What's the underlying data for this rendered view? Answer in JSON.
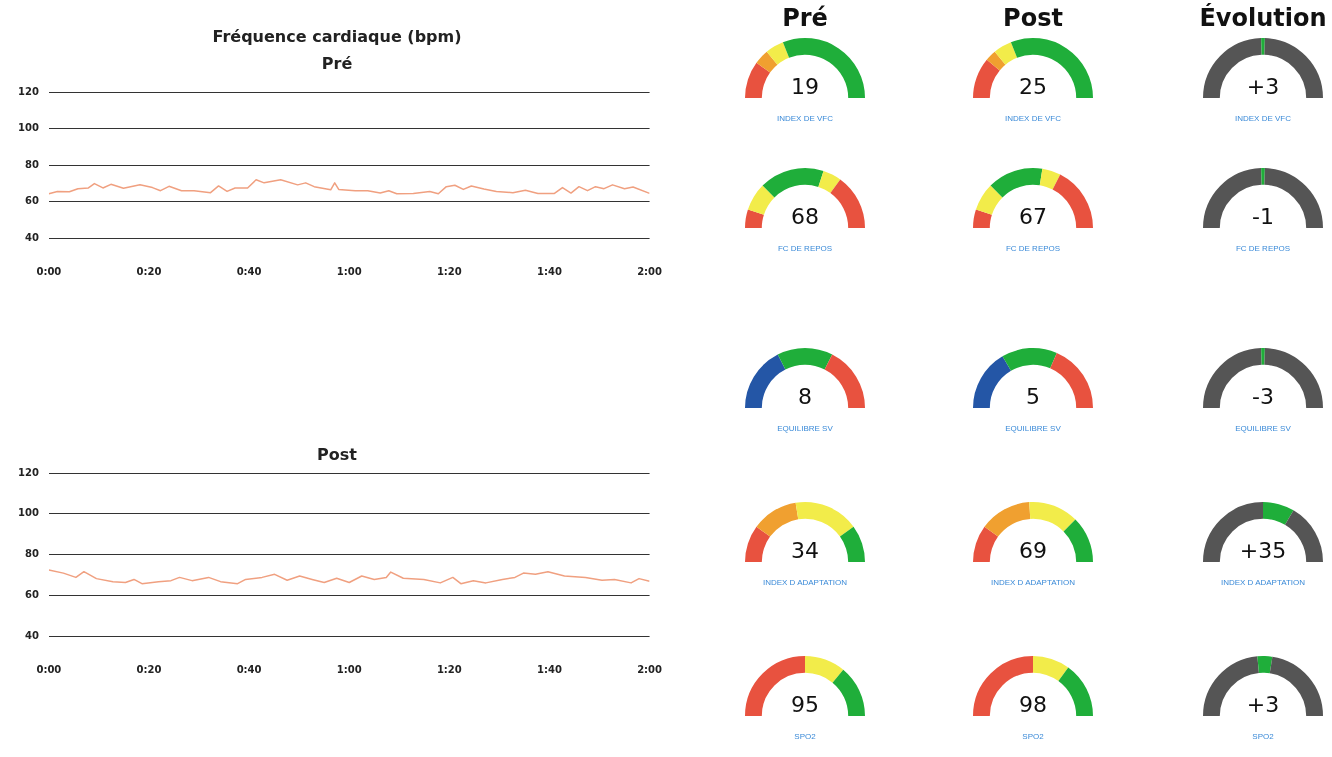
{
  "chart_data": [
    {
      "type": "line",
      "title": "Fréquence cardiaque (bpm)",
      "subtitle": "Pré",
      "grid": "y",
      "legend": false,
      "marker": "none",
      "xlim": [
        0,
        120
      ],
      "ylim": [
        40,
        120
      ],
      "yticks": [
        40,
        60,
        80,
        100,
        120
      ],
      "xticks": [
        {
          "value": 0,
          "label": "0:00"
        },
        {
          "value": 20,
          "label": "0:20"
        },
        {
          "value": 40,
          "label": "0:40"
        },
        {
          "value": 60,
          "label": "1:00"
        },
        {
          "value": 80,
          "label": "1:20"
        },
        {
          "value": 100,
          "label": "1:40"
        },
        {
          "value": 120,
          "label": "2:00"
        }
      ],
      "series": [
        {
          "color": "#f0a080",
          "x": [
            0,
            1.7,
            4.1,
            5.8,
            7.9,
            9.1,
            10.8,
            12.4,
            14.9,
            18.2,
            20.7,
            22.3,
            24.0,
            26.5,
            29.0,
            32.3,
            33.9,
            35.6,
            37.2,
            39.7,
            41.4,
            43.0,
            46.3,
            49.7,
            51.3,
            53.0,
            56.3,
            57.1,
            57.9,
            61.2,
            63.7,
            66.2,
            67.9,
            69.5,
            72.8,
            76.1,
            77.8,
            79.4,
            81.1,
            82.8,
            84.4,
            86.9,
            89.4,
            92.7,
            95.2,
            97.7,
            101.0,
            102.6,
            104.3,
            105.9,
            107.6,
            109.2,
            110.9,
            112.6,
            115.0,
            116.7,
            120
          ],
          "values": [
            64.3,
            65.6,
            65.4,
            67.1,
            67.5,
            69.9,
            67.5,
            69.5,
            67.3,
            69.2,
            67.7,
            66.0,
            68.4,
            66.0,
            66.0,
            64.9,
            68.6,
            65.6,
            67.5,
            67.5,
            72.0,
            70.3,
            72.0,
            69.2,
            70.3,
            68.2,
            66.5,
            70.3,
            66.7,
            66.0,
            66.0,
            64.7,
            66.0,
            64.3,
            64.5,
            65.6,
            64.3,
            68.2,
            69.0,
            66.7,
            68.6,
            66.9,
            65.6,
            64.9,
            66.2,
            64.5,
            64.5,
            67.7,
            64.7,
            68.2,
            66.0,
            68.2,
            67.1,
            69.2,
            67.1,
            68.0,
            64.5
          ]
        }
      ]
    },
    {
      "type": "line",
      "title": "Post",
      "grid": "y",
      "legend": false,
      "marker": "none",
      "xlim": [
        0,
        120
      ],
      "ylim": [
        40,
        120
      ],
      "yticks": [
        40,
        60,
        80,
        100,
        120
      ],
      "xticks": [
        {
          "value": 0,
          "label": "0:00"
        },
        {
          "value": 20,
          "label": "0:20"
        },
        {
          "value": 40,
          "label": "0:40"
        },
        {
          "value": 60,
          "label": "1:00"
        },
        {
          "value": 80,
          "label": "1:20"
        },
        {
          "value": 100,
          "label": "1:40"
        },
        {
          "value": 120,
          "label": "2:00"
        }
      ],
      "series": [
        {
          "color": "#f0a080",
          "x": [
            0,
            2.9,
            5.4,
            7.0,
            9.5,
            12.8,
            15.3,
            17.0,
            18.6,
            21.9,
            24.4,
            26.1,
            28.6,
            31.9,
            34.3,
            37.7,
            39.3,
            42.6,
            45.1,
            47.6,
            50.1,
            52.6,
            55.0,
            57.5,
            60.0,
            62.5,
            65.0,
            67.4,
            68.3,
            70.8,
            74.9,
            78.2,
            80.7,
            82.3,
            84.8,
            87.3,
            90.6,
            93.1,
            94.8,
            97.2,
            99.7,
            103.0,
            107.2,
            110.5,
            113.0,
            116.3,
            117.9,
            120
          ],
          "values": [
            72.4,
            70.9,
            68.8,
            71.6,
            68.2,
            66.7,
            66.3,
            67.8,
            65.7,
            66.7,
            67.2,
            68.8,
            67.2,
            68.8,
            66.7,
            65.7,
            67.8,
            68.8,
            70.3,
            67.4,
            69.5,
            67.8,
            66.3,
            68.4,
            66.3,
            69.5,
            67.8,
            68.8,
            71.4,
            68.4,
            67.8,
            66.1,
            68.8,
            65.7,
            67.2,
            66.1,
            67.8,
            68.8,
            70.9,
            70.3,
            71.6,
            69.5,
            68.8,
            67.4,
            67.8,
            66.1,
            68.2,
            66.9
          ]
        }
      ]
    },
    {
      "type": "donut",
      "title": "Pré",
      "categories": [
        null,
        null,
        null,
        null
      ],
      "values": [
        20,
        8,
        10,
        62
      ],
      "colors": [
        "#e8523f",
        "#f0a030",
        "#f2ec4a",
        "#1fae3a"
      ],
      "annotations": [
        "19"
      ],
      "xlabel": "INDEX DE VFC"
    },
    {
      "type": "donut",
      "title": "Post",
      "categories": [
        null,
        null,
        null,
        null
      ],
      "values": [
        22,
        6,
        10,
        62
      ],
      "colors": [
        "#e8523f",
        "#f0a030",
        "#f2ec4a",
        "#1fae3a"
      ],
      "annotations": [
        "25"
      ],
      "xlabel": "INDEX DE VFC"
    },
    {
      "type": "donut",
      "title": "Évolution",
      "categories": [
        null,
        null,
        null
      ],
      "values": [
        49,
        2,
        49
      ],
      "colors": [
        "#555555",
        "#1fae3a",
        "#555555"
      ],
      "annotations": [
        "+3"
      ],
      "xlabel": "INDEX DE VFC"
    },
    {
      "type": "donut",
      "categories": [
        null,
        null,
        null,
        null,
        null
      ],
      "values": [
        10,
        15,
        35,
        10,
        30
      ],
      "colors": [
        "#e8523f",
        "#f2ec4a",
        "#1fae3a",
        "#f2ec4a",
        "#e8523f"
      ],
      "annotations": [
        "68"
      ],
      "xlabel": "FC DE REPOS"
    },
    {
      "type": "donut",
      "categories": [
        null,
        null,
        null,
        null,
        null
      ],
      "values": [
        10,
        15,
        30,
        10,
        35
      ],
      "colors": [
        "#e8523f",
        "#f2ec4a",
        "#1fae3a",
        "#f2ec4a",
        "#e8523f"
      ],
      "annotations": [
        "67"
      ],
      "xlabel": "FC DE REPOS"
    },
    {
      "type": "donut",
      "categories": [
        null,
        null,
        null
      ],
      "values": [
        49,
        2,
        49
      ],
      "colors": [
        "#555555",
        "#1fae3a",
        "#555555"
      ],
      "annotations": [
        "-1"
      ],
      "xlabel": "FC DE REPOS"
    },
    {
      "type": "donut",
      "categories": [
        null,
        null,
        null
      ],
      "values": [
        35,
        30,
        35
      ],
      "colors": [
        "#2456a6",
        "#1fae3a",
        "#e8523f"
      ],
      "annotations": [
        "8"
      ],
      "xlabel": "EQUILIBRE SV"
    },
    {
      "type": "donut",
      "categories": [
        null,
        null,
        null
      ],
      "values": [
        33,
        30,
        37
      ],
      "colors": [
        "#2456a6",
        "#1fae3a",
        "#e8523f"
      ],
      "annotations": [
        "5"
      ],
      "xlabel": "EQUILIBRE SV"
    },
    {
      "type": "donut",
      "categories": [
        null,
        null,
        null
      ],
      "values": [
        49,
        2,
        49
      ],
      "colors": [
        "#555555",
        "#1fae3a",
        "#555555"
      ],
      "annotations": [
        "-3"
      ],
      "xlabel": "EQUILIBRE SV"
    },
    {
      "type": "donut",
      "categories": [
        null,
        null,
        null,
        null
      ],
      "values": [
        20,
        25,
        35,
        20
      ],
      "colors": [
        "#e8523f",
        "#f0a030",
        "#f2ec4a",
        "#1fae3a"
      ],
      "annotations": [
        "34"
      ],
      "xlabel": "INDEX D ADAPTATION"
    },
    {
      "type": "donut",
      "categories": [
        null,
        null,
        null,
        null
      ],
      "values": [
        20,
        28,
        27,
        25
      ],
      "colors": [
        "#e8523f",
        "#f0a030",
        "#f2ec4a",
        "#1fae3a"
      ],
      "annotations": [
        "69"
      ],
      "xlabel": "INDEX D ADAPTATION"
    },
    {
      "type": "donut",
      "categories": [
        null,
        null,
        null
      ],
      "values": [
        50,
        17,
        33
      ],
      "colors": [
        "#555555",
        "#1fae3a",
        "#555555"
      ],
      "annotations": [
        "+35"
      ],
      "xlabel": "INDEX D ADAPTATION"
    },
    {
      "type": "donut",
      "categories": [
        null,
        null,
        null
      ],
      "values": [
        50,
        22,
        28
      ],
      "colors": [
        "#e8523f",
        "#f2ec4a",
        "#1fae3a"
      ],
      "annotations": [
        "95"
      ],
      "xlabel": "SPO2"
    },
    {
      "type": "donut",
      "categories": [
        null,
        null,
        null
      ],
      "values": [
        50,
        20,
        30
      ],
      "colors": [
        "#e8523f",
        "#f2ec4a",
        "#1fae3a"
      ],
      "annotations": [
        "98"
      ],
      "xlabel": "SPO2"
    },
    {
      "type": "donut",
      "categories": [
        null,
        null,
        null
      ],
      "values": [
        47,
        8,
        45
      ],
      "colors": [
        "#555555",
        "#1fae3a",
        "#555555"
      ],
      "annotations": [
        "+3"
      ],
      "xlabel": "SPO2"
    }
  ]
}
